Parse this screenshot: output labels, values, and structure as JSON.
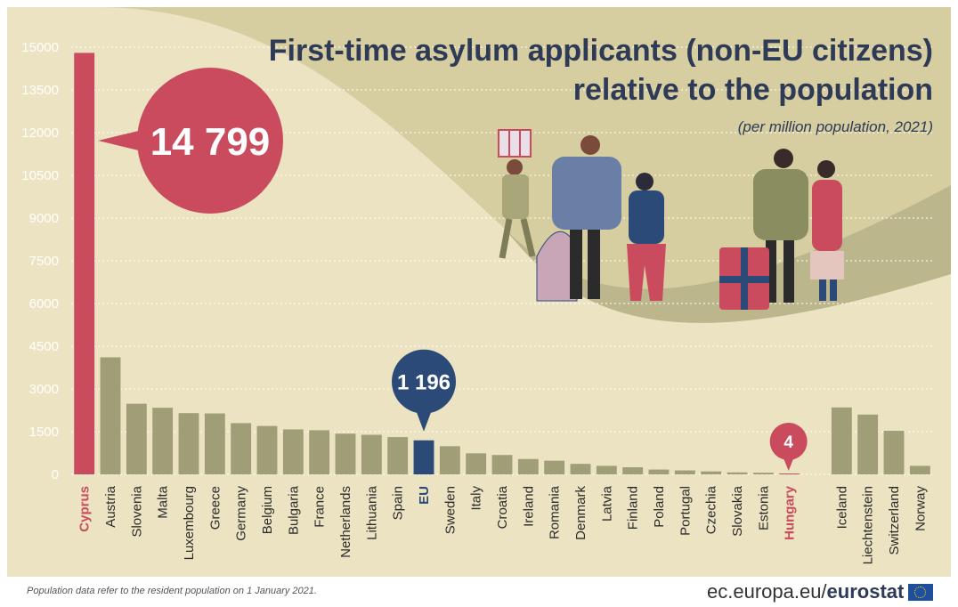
{
  "chart_data": {
    "type": "bar",
    "title": "First-time asylum applicants (non-EU citizens)",
    "title_line2": "relative to the population",
    "subtitle": "(per million population, 2021)",
    "ylim": [
      0,
      15000
    ],
    "yticks": [
      0,
      1500,
      3000,
      4500,
      6000,
      7500,
      9000,
      10500,
      12000,
      13500,
      15000
    ],
    "grid": true,
    "categories": [
      "Cyprus",
      "Austria",
      "Slovenia",
      "Malta",
      "Luxembourg",
      "Greece",
      "Germany",
      "Belgium",
      "Bulgaria",
      "France",
      "Netherlands",
      "Lithuania",
      "Spain",
      "EU",
      "Sweden",
      "Italy",
      "Croatia",
      "Ireland",
      "Romania",
      "Denmark",
      "Latvia",
      "Finland",
      "Poland",
      "Portugal",
      "Czechia",
      "Slovakia",
      "Estonia",
      "Hungary",
      "",
      "Iceland",
      "Liechtenstein",
      "Switzerland",
      "Norway"
    ],
    "values": [
      14799,
      4110,
      2480,
      2340,
      2150,
      2140,
      1800,
      1700,
      1580,
      1550,
      1430,
      1390,
      1310,
      1196,
      990,
      740,
      680,
      540,
      480,
      370,
      300,
      250,
      170,
      140,
      105,
      70,
      60,
      4,
      null,
      2350,
      2100,
      1530,
      300
    ],
    "highlight": {
      "Cyprus": "#c94b5d",
      "EU": "#2b4a78",
      "Hungary": "#c94b5d"
    },
    "callouts": [
      {
        "category": "Cyprus",
        "label": "14 799",
        "color": "#c94b5d"
      },
      {
        "category": "EU",
        "label": "1 196",
        "color": "#2b4a78"
      },
      {
        "category": "Hungary",
        "label": "4",
        "color": "#c94b5d"
      }
    ],
    "bar_color": "#a09e76",
    "gridline_color": "#ffffff"
  },
  "footer": {
    "note": "Population data refer to the resident population on 1 January 2021.",
    "brand_domain": "ec.europa.eu/",
    "brand_name": "eurostat"
  },
  "illustration": {
    "people": [
      "child-carrying-box",
      "man-in-blue-coat",
      "woman-in-red-trousers",
      "man-in-green-coat",
      "woman-in-pink-coat"
    ],
    "colors": {
      "olive": "#a9a679",
      "red": "#c94b5d",
      "navy": "#2b4a78"
    }
  }
}
